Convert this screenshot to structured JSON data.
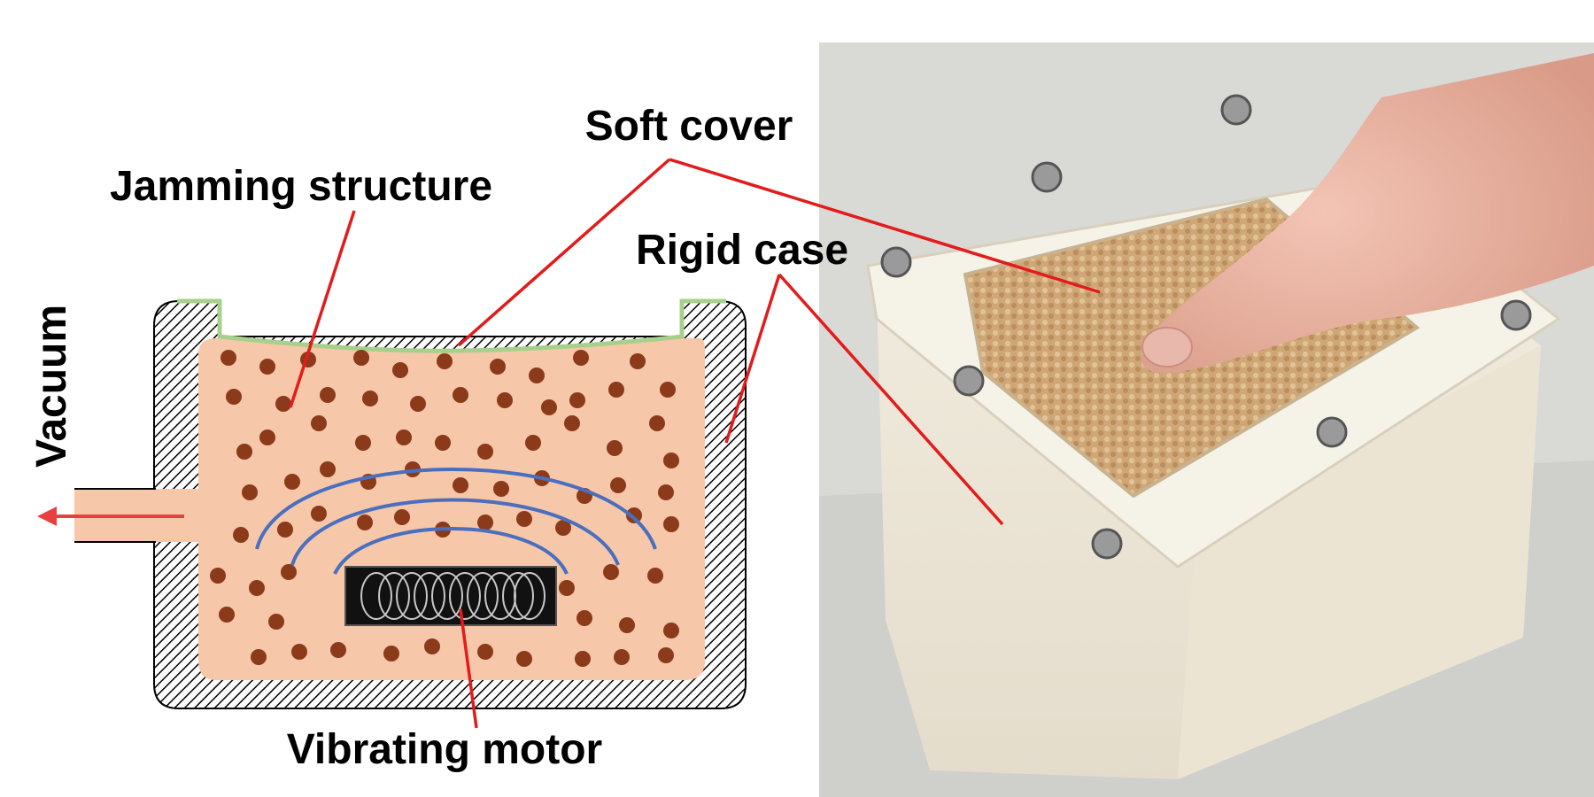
{
  "labels": {
    "soft_cover": "Soft cover",
    "jamming_structure": "Jamming structure",
    "rigid_case": "Rigid case",
    "vacuum": "Vacuum",
    "vibrating_motor": "Vibrating motor"
  },
  "colors": {
    "leader_line": "#e31b1b",
    "granular_fill": "#f7c7a9",
    "granule": "#8b3a1a",
    "case_hatch": "#000000",
    "soft_cover": "#a8d08d",
    "vibration_wave": "#4a6fbf",
    "motor_body": "#111111",
    "motor_coil": "#c8c8c8",
    "vacuum_arrow": "#e84040"
  }
}
